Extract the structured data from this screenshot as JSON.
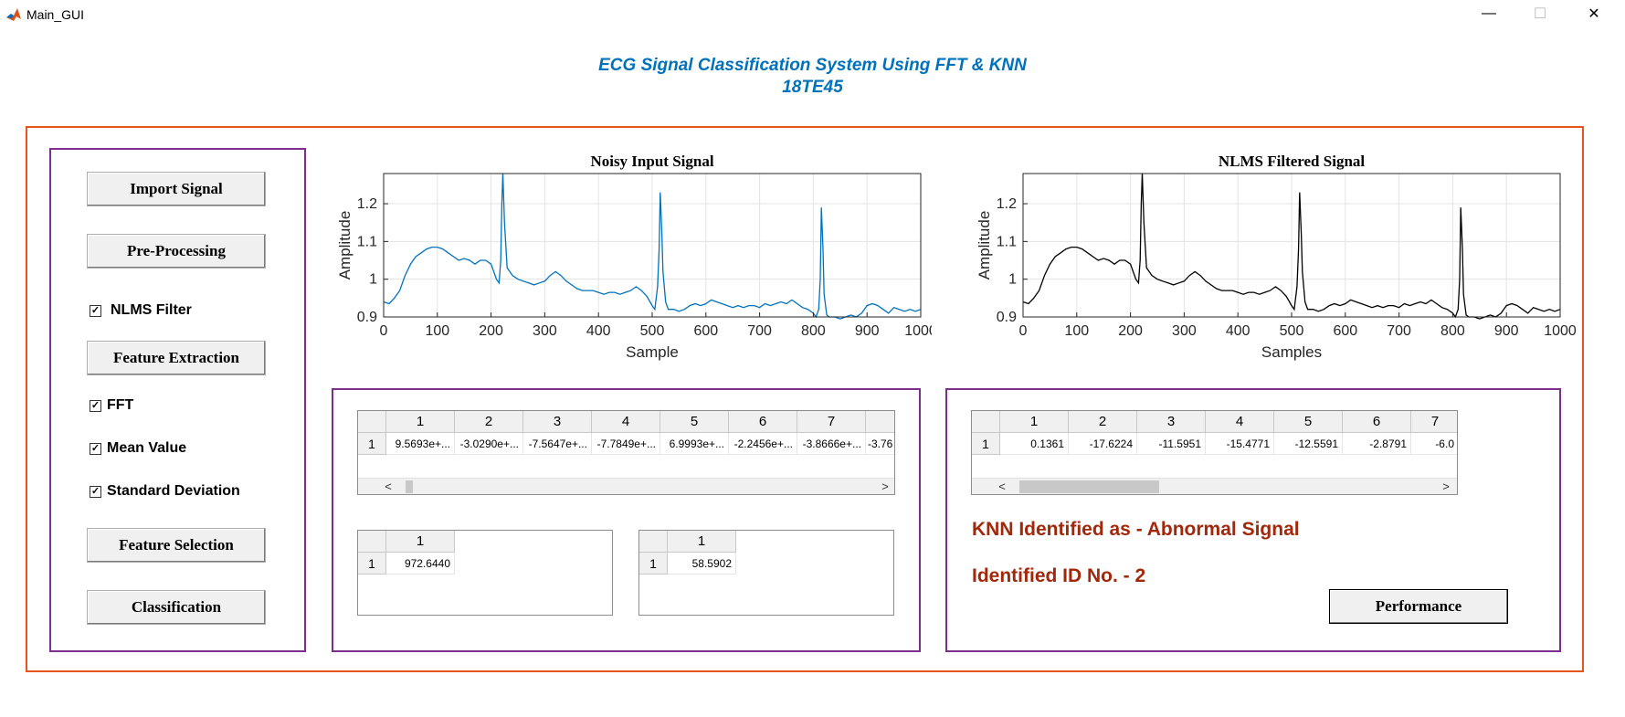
{
  "window": {
    "title": "Main_GUI",
    "minimize_glyph": "—",
    "maximize_glyph": "☐",
    "close_glyph": "✕",
    "icon": "matlab-icon"
  },
  "header": {
    "title_line1": "ECG Signal Classification System Using FFT & KNN",
    "title_line2": "18TE45"
  },
  "controls": {
    "import_label": "Import Signal",
    "preprocessing_label": "Pre-Processing",
    "nlms_label": "NLMS Filter",
    "feature_extraction_label": "Feature Extraction",
    "fft_label": "FFT",
    "mean_label": "Mean Value",
    "std_label": "Standard Deviation",
    "feature_selection_label": "Feature Selection",
    "classification_label": "Classification",
    "checkbox_states": {
      "nlms": true,
      "fft": true,
      "mean": true,
      "std": true
    }
  },
  "chart_data": [
    {
      "type": "line",
      "title": "Noisy Input Signal",
      "xlabel": "Sample",
      "ylabel": "Amplitude",
      "xlim": [
        0,
        1000
      ],
      "ylim": [
        0.9,
        1.28
      ],
      "xticks": [
        "0",
        "100",
        "200",
        "300",
        "400",
        "500",
        "600",
        "700",
        "800",
        "900",
        "1000"
      ],
      "yticks": [
        "0.9",
        "1",
        "1.1",
        "1.2"
      ],
      "grid": true,
      "color": "#0072bd",
      "series": [
        {
          "x": [
            0,
            10,
            20,
            30,
            40,
            50,
            60,
            70,
            80,
            90,
            100,
            110,
            120,
            130,
            140,
            150,
            160,
            170,
            180,
            190,
            200,
            210,
            215,
            218,
            220,
            222,
            225,
            230,
            240,
            250,
            260,
            270,
            280,
            290,
            300,
            310,
            320,
            330,
            340,
            350,
            360,
            370,
            380,
            390,
            400,
            410,
            420,
            430,
            440,
            450,
            460,
            470,
            480,
            490,
            500,
            505,
            510,
            513,
            515,
            518,
            520,
            525,
            530,
            540,
            550,
            560,
            570,
            580,
            590,
            600,
            610,
            620,
            630,
            640,
            650,
            660,
            670,
            680,
            690,
            700,
            710,
            720,
            730,
            740,
            750,
            760,
            770,
            780,
            790,
            800,
            805,
            810,
            813,
            815,
            818,
            820,
            825,
            830,
            840,
            850,
            860,
            870,
            880,
            890,
            900,
            910,
            920,
            930,
            940,
            950,
            960,
            970,
            980,
            990,
            1000
          ],
          "values": [
            0.94,
            0.935,
            0.95,
            0.97,
            1.01,
            1.04,
            1.06,
            1.07,
            1.08,
            1.085,
            1.085,
            1.08,
            1.07,
            1.06,
            1.05,
            1.055,
            1.05,
            1.04,
            1.05,
            1.05,
            1.04,
            1.0,
            0.99,
            1.05,
            1.2,
            1.28,
            1.15,
            1.03,
            1.01,
            1.0,
            0.995,
            0.99,
            0.985,
            0.99,
            0.995,
            1.01,
            1.02,
            1.01,
            0.995,
            0.985,
            0.975,
            0.97,
            0.97,
            0.97,
            0.965,
            0.96,
            0.965,
            0.965,
            0.96,
            0.965,
            0.97,
            0.98,
            0.97,
            0.955,
            0.93,
            0.92,
            0.98,
            1.08,
            1.23,
            1.12,
            1.02,
            0.94,
            0.92,
            0.92,
            0.915,
            0.92,
            0.93,
            0.935,
            0.93,
            0.935,
            0.945,
            0.94,
            0.935,
            0.93,
            0.925,
            0.93,
            0.925,
            0.93,
            0.93,
            0.925,
            0.935,
            0.93,
            0.935,
            0.94,
            0.935,
            0.945,
            0.935,
            0.925,
            0.92,
            0.91,
            0.9,
            0.92,
            1.0,
            1.19,
            1.08,
            0.96,
            0.905,
            0.9,
            0.9,
            0.895,
            0.9,
            0.905,
            0.9,
            0.91,
            0.93,
            0.935,
            0.93,
            0.92,
            0.91,
            0.925,
            0.92,
            0.915,
            0.92,
            0.915,
            0.92
          ]
        }
      ]
    },
    {
      "type": "line",
      "title": "NLMS Filtered Signal",
      "xlabel": "Samples",
      "ylabel": "Amplitude",
      "xlim": [
        0,
        1000
      ],
      "ylim": [
        0.9,
        1.28
      ],
      "xticks": [
        "0",
        "100",
        "200",
        "300",
        "400",
        "500",
        "600",
        "700",
        "800",
        "900",
        "1000"
      ],
      "yticks": [
        "0.9",
        "1",
        "1.1",
        "1.2"
      ],
      "grid": true,
      "color": "#000000",
      "series": [
        {
          "x": [
            0,
            10,
            20,
            30,
            40,
            50,
            60,
            70,
            80,
            90,
            100,
            110,
            120,
            130,
            140,
            150,
            160,
            170,
            180,
            190,
            200,
            210,
            215,
            218,
            220,
            222,
            225,
            230,
            240,
            250,
            260,
            270,
            280,
            290,
            300,
            310,
            320,
            330,
            340,
            350,
            360,
            370,
            380,
            390,
            400,
            410,
            420,
            430,
            440,
            450,
            460,
            470,
            480,
            490,
            500,
            505,
            510,
            513,
            515,
            518,
            520,
            525,
            530,
            540,
            550,
            560,
            570,
            580,
            590,
            600,
            610,
            620,
            630,
            640,
            650,
            660,
            670,
            680,
            690,
            700,
            710,
            720,
            730,
            740,
            750,
            760,
            770,
            780,
            790,
            800,
            805,
            810,
            813,
            815,
            818,
            820,
            825,
            830,
            840,
            850,
            860,
            870,
            880,
            890,
            900,
            910,
            920,
            930,
            940,
            950,
            960,
            970,
            980,
            990,
            1000
          ],
          "values": [
            0.94,
            0.935,
            0.95,
            0.97,
            1.01,
            1.04,
            1.06,
            1.07,
            1.08,
            1.085,
            1.085,
            1.08,
            1.07,
            1.06,
            1.05,
            1.055,
            1.05,
            1.04,
            1.05,
            1.05,
            1.04,
            1.0,
            0.99,
            1.05,
            1.2,
            1.28,
            1.15,
            1.03,
            1.01,
            1.0,
            0.995,
            0.99,
            0.985,
            0.99,
            0.995,
            1.01,
            1.02,
            1.01,
            0.995,
            0.985,
            0.975,
            0.97,
            0.97,
            0.97,
            0.965,
            0.96,
            0.965,
            0.965,
            0.96,
            0.965,
            0.97,
            0.98,
            0.97,
            0.955,
            0.93,
            0.92,
            0.98,
            1.08,
            1.23,
            1.12,
            1.02,
            0.94,
            0.92,
            0.92,
            0.915,
            0.92,
            0.93,
            0.935,
            0.93,
            0.935,
            0.945,
            0.94,
            0.935,
            0.93,
            0.925,
            0.93,
            0.925,
            0.93,
            0.93,
            0.925,
            0.935,
            0.93,
            0.935,
            0.94,
            0.935,
            0.945,
            0.935,
            0.925,
            0.92,
            0.91,
            0.9,
            0.92,
            1.0,
            1.19,
            1.08,
            0.96,
            0.905,
            0.9,
            0.9,
            0.895,
            0.9,
            0.905,
            0.9,
            0.91,
            0.93,
            0.935,
            0.93,
            0.92,
            0.91,
            0.925,
            0.92,
            0.915,
            0.92,
            0.915,
            0.92
          ]
        }
      ]
    }
  ],
  "features_table": {
    "columns": [
      "1",
      "2",
      "3",
      "4",
      "5",
      "6",
      "7"
    ],
    "row_header": "1",
    "values": [
      "9.5693e+...",
      "-3.0290e+...",
      "-7.5647e+...",
      "-7.7849e+...",
      "6.9993e+...",
      "-2.2456e+...",
      "-3.8666e+...",
      "-3.76"
    ],
    "scroll_left": "<",
    "scroll_right": ">"
  },
  "mean_table": {
    "column": "1",
    "row_header": "1",
    "value": "972.6440"
  },
  "std_table": {
    "column": "1",
    "row_header": "1",
    "value": "58.5902"
  },
  "selected_table": {
    "columns": [
      "1",
      "2",
      "3",
      "4",
      "5",
      "6",
      "7"
    ],
    "row_header": "1",
    "values": [
      "0.1361",
      "-17.6224",
      "-11.5951",
      "-15.4771",
      "-12.5591",
      "-2.8791",
      "-6.0"
    ],
    "scroll_left": "<",
    "scroll_right": ">"
  },
  "results": {
    "knn_text": "KNN Identified as - Abnormal Signal",
    "id_text": "Identified ID No. - 2",
    "performance_label": "Performance"
  },
  "colors": {
    "frame": "#e8541e",
    "panel": "#7e2f8e",
    "title": "#0072bd",
    "result": "#a2280c",
    "signal1": "#0072bd",
    "signal2": "#000000"
  }
}
